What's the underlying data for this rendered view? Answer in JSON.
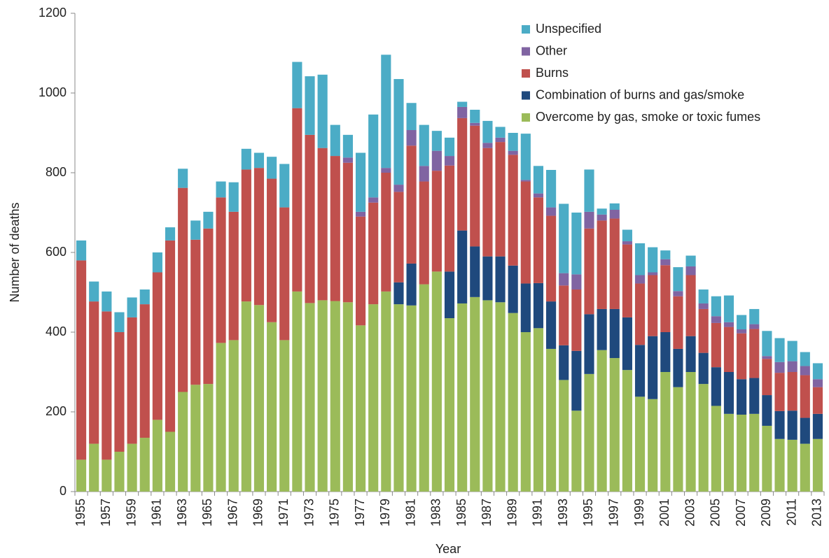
{
  "chart_data": {
    "type": "stacked-bar",
    "x_label": "Year",
    "y_label": "Number of deaths",
    "categories": [
      "1955",
      null,
      "1957",
      null,
      "1959",
      null,
      "1961",
      null,
      "1963",
      null,
      "1965",
      null,
      "1967",
      null,
      "1969",
      null,
      "1971",
      null,
      "1973",
      null,
      "1975",
      null,
      "1977",
      null,
      "1979",
      null,
      "1981",
      null,
      "1983",
      null,
      "1985",
      null,
      "1987",
      null,
      "1989",
      null,
      "1991",
      null,
      "1993",
      null,
      "1995",
      null,
      "1997",
      null,
      "1999",
      null,
      "2001",
      null,
      "2003",
      null,
      "2005",
      null,
      "2007",
      null,
      "2009",
      null,
      "2011",
      null,
      "2013"
    ],
    "series": [
      {
        "name": "Overcome by gas, smoke or toxic fumes",
        "color": "#9bbb59",
        "values": [
          80,
          120,
          80,
          100,
          120,
          135,
          180,
          150,
          250,
          268,
          270,
          373,
          380,
          477,
          468,
          425,
          380,
          502,
          473,
          480,
          478,
          475,
          417,
          470,
          502,
          470,
          467,
          520,
          552,
          435,
          472,
          488,
          480,
          475,
          448,
          400,
          410,
          358,
          280,
          203,
          295,
          355,
          335,
          305,
          238,
          232,
          300,
          262,
          300,
          270,
          215,
          195,
          193,
          195,
          165,
          132,
          130,
          120,
          132
        ]
      },
      {
        "name": "Combination of burns and gas/smoke",
        "color": "#1f497d",
        "values": [
          0,
          0,
          0,
          0,
          0,
          0,
          0,
          0,
          0,
          0,
          0,
          0,
          0,
          0,
          0,
          0,
          0,
          0,
          0,
          0,
          0,
          0,
          0,
          0,
          0,
          55,
          105,
          0,
          0,
          117,
          183,
          127,
          110,
          115,
          119,
          122,
          113,
          119,
          87,
          150,
          150,
          103,
          123,
          132,
          130,
          158,
          100,
          96,
          90,
          78,
          97,
          105,
          89,
          90,
          77,
          70,
          73,
          65,
          63
        ]
      },
      {
        "name": "Burns",
        "color": "#c0504d",
        "values": [
          500,
          357,
          372,
          300,
          317,
          335,
          370,
          480,
          512,
          364,
          390,
          365,
          322,
          331,
          344,
          360,
          333,
          460,
          422,
          382,
          364,
          350,
          273,
          255,
          298,
          227,
          296,
          258,
          253,
          266,
          282,
          303,
          272,
          287,
          278,
          256,
          215,
          215,
          150,
          154,
          215,
          222,
          227,
          183,
          154,
          153,
          168,
          132,
          153,
          110,
          111,
          113,
          115,
          123,
          91,
          96,
          97,
          107,
          67
        ]
      },
      {
        "name": "Other",
        "color": "#8064a2",
        "values": [
          0,
          0,
          0,
          0,
          0,
          0,
          0,
          0,
          0,
          0,
          0,
          0,
          0,
          0,
          0,
          0,
          0,
          0,
          0,
          0,
          0,
          13,
          12,
          13,
          12,
          18,
          39,
          39,
          50,
          24,
          28,
          7,
          13,
          11,
          10,
          4,
          10,
          21,
          31,
          38,
          42,
          15,
          22,
          8,
          21,
          7,
          15,
          13,
          22,
          14,
          17,
          12,
          10,
          12,
          7,
          27,
          27,
          23,
          20
        ]
      },
      {
        "name": "Unspecified",
        "color": "#4bacc6",
        "values": [
          50,
          50,
          50,
          50,
          50,
          37,
          50,
          33,
          48,
          48,
          42,
          40,
          74,
          52,
          38,
          55,
          109,
          116,
          147,
          184,
          78,
          57,
          148,
          208,
          284,
          265,
          68,
          103,
          50,
          46,
          13,
          33,
          55,
          27,
          45,
          116,
          69,
          94,
          174,
          155,
          106,
          15,
          16,
          29,
          80,
          63,
          22,
          60,
          27,
          35,
          50,
          67,
          36,
          38,
          63,
          60,
          51,
          35,
          40
        ]
      }
    ],
    "ylim": [
      0,
      1200
    ],
    "yticks": [
      0,
      200,
      400,
      600,
      800,
      1000,
      1200
    ],
    "grid": false,
    "legend": "top-right"
  }
}
